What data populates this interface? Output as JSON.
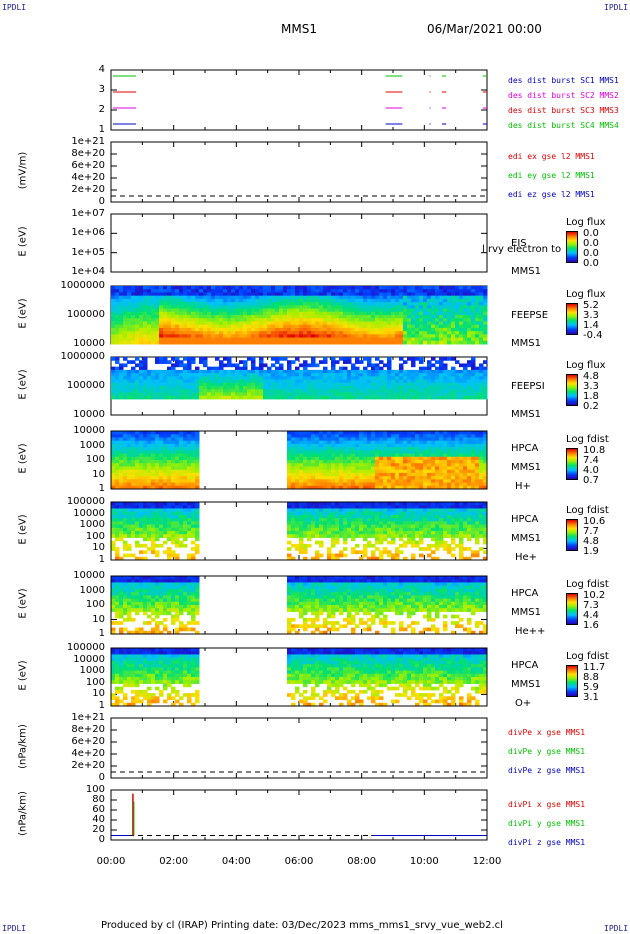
{
  "corner_labels": {
    "tl": "IPDLI",
    "tr": "IPDLI",
    "bl": "IPDLI",
    "br": "IPDLI"
  },
  "header": {
    "spacecraft": "MMS1",
    "datetime": "06/Mar/2021 00:00"
  },
  "footer": {
    "text": "Produced by cl (IRAP)   Printing date: 03/Dec/2023   mms_mms1_srvy_vue_web2.cl"
  },
  "colors": {
    "sc1": "#0000c0",
    "sc2": "#e00000",
    "sc3": "#e000e0",
    "sc4": "#00c000",
    "x": "#e00000",
    "y": "#00c000",
    "z": "#0000c0"
  },
  "chart_data": [
    {
      "id": "burst",
      "type": "line",
      "yticks": [
        "4",
        "3",
        "2",
        "1"
      ],
      "legend": [
        {
          "text": "des dist burst SC1 MMS1",
          "color": "sc1"
        },
        {
          "text": "des dist burst SC2 MMS2",
          "color": "sc3"
        },
        {
          "text": "des dist burst SC3 MMS3",
          "color": "sc2"
        },
        {
          "text": "des dist burst SC4 MMS4",
          "color": "sc4"
        }
      ],
      "xlim_hours": [
        0,
        12
      ],
      "intervals_hours": [
        [
          0.0,
          0.8
        ],
        [
          8.7,
          9.3
        ],
        [
          10.1,
          10.2
        ],
        [
          10.5,
          10.7
        ],
        [
          11.8,
          12.0
        ]
      ]
    },
    {
      "id": "edi",
      "type": "line",
      "ylabel": "(mV/m)",
      "yticks": [
        "1e+21",
        "8e+20",
        "6e+20",
        "4e+20",
        "2e+20",
        "0"
      ],
      "legend": [
        {
          "text": "edi ex gse l2 MMS1",
          "color": "x"
        },
        {
          "text": "edi ey gse l2 MMS1",
          "color": "y"
        },
        {
          "text": "edi ez gse l2 MMS1",
          "color": "z"
        }
      ]
    },
    {
      "id": "eis",
      "type": "heatmap",
      "ylabel": "E (eV)",
      "yticks": [
        "1e+07",
        "1e+06",
        "1e+05",
        "1e+04"
      ],
      "instrument": [
        "EIS",
        "MMS1"
      ],
      "overlay_text": "l  rvy electron to",
      "cb_title": "Log flux",
      "cb_values": [
        "0.0",
        "0.0",
        "0.0",
        "0.0"
      ]
    },
    {
      "id": "feepse",
      "type": "heatmap",
      "ylabel": "E (eV)",
      "yticks": [
        "1000000",
        "100000",
        "10000"
      ],
      "instrument": [
        "FEEPSE",
        "MMS1"
      ],
      "cb_title": "Log flux",
      "cb_values": [
        "5.2",
        "3.3",
        "1.4",
        "-0.4"
      ]
    },
    {
      "id": "feepsi",
      "type": "heatmap",
      "ylabel": "E (eV)",
      "yticks": [
        "1000000",
        "100000",
        "10000"
      ],
      "instrument": [
        "FEEPSI",
        "MMS1"
      ],
      "cb_title": "Log flux",
      "cb_values": [
        "4.8",
        "3.3",
        "1.8",
        "0.2"
      ]
    },
    {
      "id": "hpca_h",
      "type": "heatmap",
      "ylabel": "E (eV)",
      "yticks": [
        "10000",
        "1000",
        "100",
        "10",
        "1"
      ],
      "instrument": [
        "HPCA",
        "MMS1",
        "H+"
      ],
      "cb_title": "Log fdist",
      "cb_values": [
        "10.8",
        "7.4",
        "4.0",
        "0.7"
      ],
      "gap_hours": [
        2.8,
        5.6
      ]
    },
    {
      "id": "hpca_he",
      "type": "heatmap",
      "ylabel": "E (eV)",
      "yticks": [
        "100000",
        "10000",
        "1000",
        "100",
        "10",
        "1"
      ],
      "instrument": [
        "HPCA",
        "MMS1",
        "He+"
      ],
      "cb_title": "Log fdist",
      "cb_values": [
        "10.6",
        "7.7",
        "4.8",
        "1.9"
      ],
      "gap_hours": [
        2.8,
        5.6
      ]
    },
    {
      "id": "hpca_he2",
      "type": "heatmap",
      "ylabel": "E (eV)",
      "yticks": [
        "10000",
        "1000",
        "100",
        "10",
        "1"
      ],
      "instrument": [
        "HPCA",
        "MMS1",
        "He++"
      ],
      "cb_title": "Log fdist",
      "cb_values": [
        "10.2",
        "7.3",
        "4.4",
        "1.6"
      ],
      "gap_hours": [
        2.8,
        5.6
      ]
    },
    {
      "id": "hpca_o",
      "type": "heatmap",
      "ylabel": "E (eV)",
      "yticks": [
        "100000",
        "10000",
        "1000",
        "100",
        "10",
        "1"
      ],
      "instrument": [
        "HPCA",
        "MMS1",
        "O+"
      ],
      "cb_title": "Log fdist",
      "cb_values": [
        "11.7",
        "8.8",
        "5.9",
        "3.1"
      ],
      "gap_hours": [
        2.8,
        5.6
      ]
    },
    {
      "id": "divpe",
      "type": "line",
      "ylabel": "(nPa/km)",
      "yticks": [
        "1e+21",
        "8e+20",
        "6e+20",
        "4e+20",
        "2e+20",
        "0"
      ],
      "legend": [
        {
          "text": "divPe x gse MMS1",
          "color": "x"
        },
        {
          "text": "divPe y gse MMS1",
          "color": "y"
        },
        {
          "text": "divPe z gse MMS1",
          "color": "z"
        }
      ]
    },
    {
      "id": "divpi",
      "type": "line",
      "ylabel": "(nPa/km)",
      "yticks": [
        "100",
        "80",
        "60",
        "40",
        "20",
        "0"
      ],
      "legend": [
        {
          "text": "divPi x gse MMS1",
          "color": "x"
        },
        {
          "text": "divPi y gse MMS1",
          "color": "y"
        },
        {
          "text": "divPi z gse MMS1",
          "color": "z"
        }
      ],
      "ylim": [
        -10,
        100
      ],
      "spike": {
        "hour": 0.7,
        "value": 92
      }
    }
  ],
  "xaxis": {
    "ticks": [
      "00:00",
      "02:00",
      "04:00",
      "06:00",
      "08:00",
      "10:00",
      "12:00"
    ]
  }
}
